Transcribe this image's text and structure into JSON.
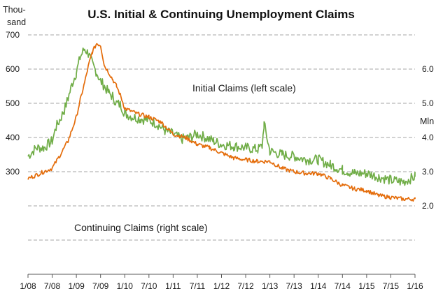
{
  "chart_data": {
    "type": "line",
    "title": "U.S. Initial & Continuing Unemployment Claims",
    "left_axis_label": [
      "Thou-",
      "sand"
    ],
    "right_axis_label": "Mln",
    "x_ticks": [
      "1/08",
      "7/08",
      "1/09",
      "7/09",
      "1/10",
      "7/10",
      "1/11",
      "7/11",
      "1/12",
      "7/12",
      "1/13",
      "7/13",
      "1/14",
      "7/14",
      "1/15",
      "7/15",
      "1/16"
    ],
    "x_range": [
      "2008-01",
      "2016-01"
    ],
    "left_ticks": [
      "300",
      "400",
      "500",
      "600",
      "700"
    ],
    "left_range": [
      0,
      700
    ],
    "right_ticks": [
      "2.0",
      "3.0",
      "4.0",
      "5.0",
      "6.0"
    ],
    "right_range": [
      0,
      7
    ],
    "grid": "horizontal dashed",
    "colors": {
      "initial": "#70ad47",
      "continuing": "#e46c0a"
    },
    "annotations": [
      "Initial Claims (left scale)",
      "Continuing Claims (right scale)"
    ],
    "series": [
      {
        "name": "Initial Claims (left scale)",
        "axis": "left",
        "x": [
          2008.0,
          2008.17,
          2008.33,
          2008.5,
          2008.58,
          2008.67,
          2008.75,
          2008.83,
          2008.92,
          2009.0,
          2009.08,
          2009.17,
          2009.25,
          2009.33,
          2009.42,
          2009.5,
          2009.58,
          2009.67,
          2009.75,
          2009.83,
          2009.92,
          2010.0,
          2010.17,
          2010.33,
          2010.5,
          2010.67,
          2010.83,
          2011.0,
          2011.17,
          2011.33,
          2011.5,
          2011.67,
          2011.83,
          2012.0,
          2012.25,
          2012.5,
          2012.75,
          2012.84,
          2012.88,
          2013.0,
          2013.25,
          2013.5,
          2013.75,
          2014.0,
          2014.25,
          2014.5,
          2014.75,
          2015.0,
          2015.25,
          2015.5,
          2015.75,
          2016.0
        ],
        "values": [
          345,
          370,
          370,
          390,
          430,
          455,
          480,
          515,
          560,
          590,
          635,
          660,
          645,
          615,
          590,
          565,
          550,
          530,
          520,
          500,
          495,
          470,
          460,
          455,
          450,
          440,
          420,
          410,
          395,
          400,
          410,
          400,
          390,
          380,
          375,
          370,
          365,
          375,
          440,
          360,
          350,
          345,
          335,
          335,
          320,
          305,
          295,
          295,
          285,
          275,
          270,
          285
        ]
      },
      {
        "name": "Continuing Claims (right scale)",
        "axis": "right",
        "x": [
          2008.0,
          2008.17,
          2008.33,
          2008.5,
          2008.67,
          2008.83,
          2009.0,
          2009.08,
          2009.17,
          2009.25,
          2009.33,
          2009.42,
          2009.5,
          2009.58,
          2009.67,
          2009.75,
          2009.83,
          2009.92,
          2010.0,
          2010.25,
          2010.5,
          2010.75,
          2011.0,
          2011.25,
          2011.5,
          2011.75,
          2012.0,
          2012.25,
          2012.5,
          2012.75,
          2013.0,
          2013.25,
          2013.5,
          2013.75,
          2014.0,
          2014.25,
          2014.5,
          2014.75,
          2015.0,
          2015.25,
          2015.5,
          2015.75,
          2016.0
        ],
        "values": [
          2.8,
          2.9,
          3.0,
          3.1,
          3.5,
          3.9,
          4.6,
          5.1,
          5.6,
          6.1,
          6.5,
          6.75,
          6.7,
          6.1,
          5.9,
          5.7,
          5.5,
          5.2,
          4.85,
          4.7,
          4.6,
          4.45,
          4.1,
          4.0,
          3.8,
          3.7,
          3.55,
          3.4,
          3.35,
          3.3,
          3.3,
          3.1,
          3.0,
          2.95,
          2.95,
          2.8,
          2.6,
          2.5,
          2.45,
          2.3,
          2.25,
          2.2,
          2.2
        ]
      }
    ]
  }
}
